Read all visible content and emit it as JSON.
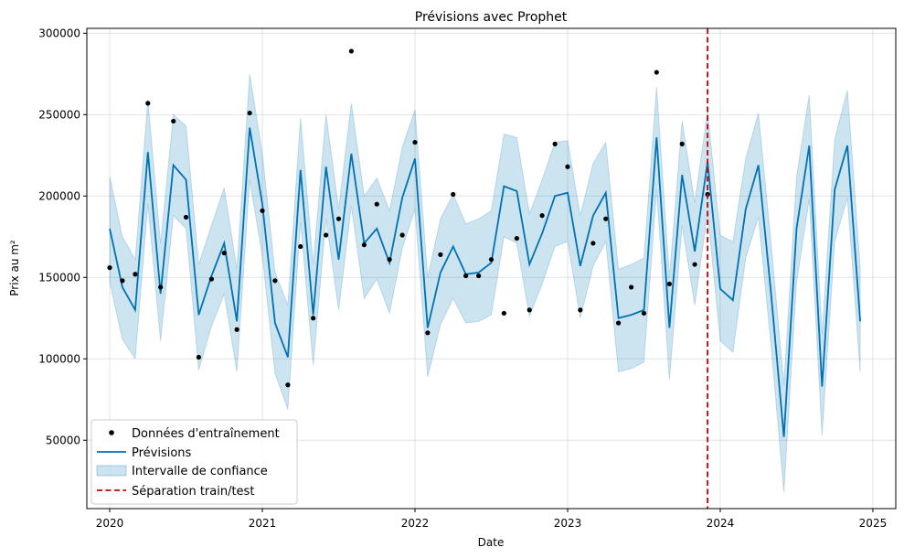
{
  "chart_data": {
    "type": "line",
    "title": "Prévisions avec Prophet",
    "xlabel": "Date",
    "ylabel": "Prix au m²",
    "xlim": [
      2019.85,
      2025.15
    ],
    "ylim": [
      8000,
      303000
    ],
    "x_ticks": [
      2020,
      2021,
      2022,
      2023,
      2024,
      2025
    ],
    "x_tick_labels": [
      "2020",
      "2021",
      "2022",
      "2023",
      "2024",
      "2025"
    ],
    "y_ticks": [
      50000,
      100000,
      150000,
      200000,
      250000,
      300000
    ],
    "y_tick_labels": [
      "50000",
      "100000",
      "150000",
      "200000",
      "250000",
      "300000"
    ],
    "grid": true,
    "legend": {
      "placement": "bottom-left",
      "entries": [
        "Données d'entraînement",
        "Prévisions",
        "Intervalle de confiance",
        "Séparation train/test"
      ]
    },
    "colors": {
      "training": "#000000",
      "forecast": "#0072b2",
      "band": "#0072b2",
      "separator": "#cc0000"
    },
    "split_x": 2023.917,
    "training": {
      "x": [
        2020.0,
        2020.083,
        2020.167,
        2020.25,
        2020.333,
        2020.417,
        2020.5,
        2020.583,
        2020.667,
        2020.75,
        2020.833,
        2020.917,
        2021.0,
        2021.083,
        2021.167,
        2021.25,
        2021.333,
        2021.417,
        2021.5,
        2021.583,
        2021.667,
        2021.75,
        2021.833,
        2021.917,
        2022.0,
        2022.083,
        2022.167,
        2022.25,
        2022.333,
        2022.417,
        2022.5,
        2022.583,
        2022.667,
        2022.75,
        2022.833,
        2022.917,
        2023.0,
        2023.083,
        2023.167,
        2023.25,
        2023.333,
        2023.417,
        2023.5,
        2023.583,
        2023.667,
        2023.75,
        2023.833,
        2023.917
      ],
      "y": [
        156000,
        148000,
        152000,
        257000,
        144000,
        246000,
        187000,
        101000,
        149000,
        165000,
        118000,
        251000,
        191000,
        148000,
        84000,
        169000,
        125000,
        176000,
        186000,
        289000,
        170000,
        195000,
        161000,
        176000,
        233000,
        116000,
        164000,
        201000,
        151000,
        151000,
        161000,
        128000,
        174000,
        130000,
        188000,
        232000,
        218000,
        130000,
        171000,
        186000,
        122000,
        144000,
        128000,
        276000,
        146000,
        232000,
        158000,
        201000
      ]
    },
    "forecast": {
      "x": [
        2020.0,
        2020.083,
        2020.167,
        2020.25,
        2020.333,
        2020.417,
        2020.5,
        2020.583,
        2020.667,
        2020.75,
        2020.833,
        2020.917,
        2021.0,
        2021.083,
        2021.167,
        2021.25,
        2021.333,
        2021.417,
        2021.5,
        2021.583,
        2021.667,
        2021.75,
        2021.833,
        2021.917,
        2022.0,
        2022.083,
        2022.167,
        2022.25,
        2022.333,
        2022.417,
        2022.5,
        2022.583,
        2022.667,
        2022.75,
        2022.833,
        2022.917,
        2023.0,
        2023.083,
        2023.167,
        2023.25,
        2023.333,
        2023.417,
        2023.5,
        2023.583,
        2023.667,
        2023.75,
        2023.833,
        2023.917,
        2024.0,
        2024.083,
        2024.167,
        2024.25,
        2024.333,
        2024.417,
        2024.5,
        2024.583,
        2024.667,
        2024.75,
        2024.833,
        2024.917
      ],
      "yhat": [
        180000,
        144000,
        130000,
        227000,
        140000,
        219000,
        210000,
        127000,
        151000,
        171000,
        123000,
        242000,
        195000,
        122000,
        101000,
        216000,
        127000,
        218000,
        161000,
        226000,
        171000,
        180000,
        159000,
        199000,
        223000,
        119000,
        153000,
        169000,
        152000,
        153000,
        159000,
        206000,
        203000,
        158000,
        177000,
        200000,
        202000,
        157000,
        188000,
        202000,
        125000,
        127000,
        130000,
        236000,
        119000,
        213000,
        166000,
        221000,
        143000,
        136000,
        192000,
        219000,
        140000,
        52000,
        180000,
        231000,
        83000,
        204000,
        231000,
        123000
      ],
      "lower": [
        147000,
        112000,
        100000,
        195000,
        111000,
        188000,
        180000,
        93000,
        120000,
        140000,
        92000,
        210000,
        163000,
        91000,
        69000,
        184000,
        96000,
        186000,
        130000,
        194000,
        137000,
        149000,
        128000,
        168000,
        192000,
        89000,
        121000,
        137000,
        122000,
        123000,
        127000,
        175000,
        171000,
        126000,
        146000,
        169000,
        172000,
        125000,
        157000,
        172000,
        92000,
        94000,
        98000,
        204000,
        87000,
        182000,
        133000,
        190000,
        111000,
        104000,
        162000,
        187000,
        108000,
        18000,
        147000,
        198000,
        53000,
        172000,
        199000,
        92000
      ],
      "upper": [
        212000,
        175000,
        161000,
        259000,
        171000,
        250000,
        243000,
        158000,
        182000,
        205000,
        155000,
        275000,
        226000,
        153000,
        133000,
        248000,
        158000,
        250000,
        192000,
        257000,
        200000,
        211000,
        191000,
        230000,
        253000,
        150000,
        186000,
        201000,
        183000,
        186000,
        191000,
        238000,
        236000,
        189000,
        210000,
        233000,
        234000,
        188000,
        220000,
        233000,
        155000,
        158000,
        162000,
        267000,
        150000,
        246000,
        196000,
        252000,
        176000,
        172000,
        223000,
        251000,
        171000,
        84000,
        212000,
        262000,
        115000,
        235000,
        265000,
        156000
      ]
    }
  }
}
